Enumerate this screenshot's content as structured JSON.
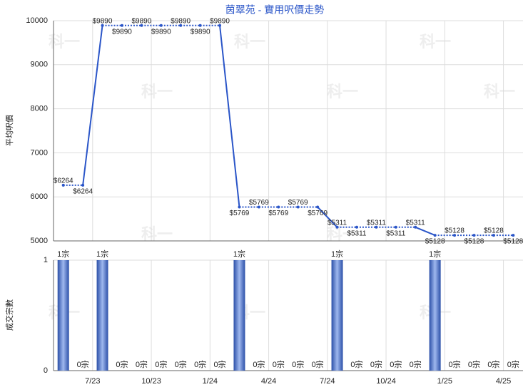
{
  "chart_data": [
    {
      "type": "line",
      "title": "茵翠苑 - 實用呎價走勢",
      "ylabel": "平均呎價",
      "color": "#2a55c8",
      "values": [
        6264,
        6264,
        9890,
        9890,
        9890,
        9890,
        9890,
        9890,
        9890,
        5769,
        5769,
        5769,
        5769,
        5769,
        5311,
        5311,
        5311,
        5311,
        5311,
        5128,
        5128,
        5128,
        5128,
        5128
      ],
      "value_labels": [
        "$6264",
        "$6264",
        "$9890",
        "$9890",
        "$9890",
        "$9890",
        "$9890",
        "$9890",
        "$9890",
        "$5769",
        "$5769",
        "$5769",
        "$5769",
        "$5769",
        "$5311",
        "$5311",
        "$5311",
        "$5311",
        "$5311",
        "$5128",
        "$5128",
        "$5128",
        "$5128",
        "$5128"
      ],
      "ylim": [
        5000,
        10000
      ],
      "yticks": [
        5000,
        6000,
        7000,
        8000,
        9000,
        10000
      ],
      "grid": true,
      "watermark": "科一"
    },
    {
      "type": "bar",
      "ylabel": "成交宗數",
      "color": "#3a66c8",
      "categories": [
        null,
        null,
        "7/23",
        null,
        null,
        "10/23",
        null,
        null,
        "1/24",
        null,
        null,
        "4/24",
        null,
        null,
        "7/24",
        null,
        null,
        "10/24",
        null,
        null,
        "1/25",
        null,
        null,
        "4/25"
      ],
      "values": [
        1,
        0,
        1,
        0,
        0,
        0,
        0,
        0,
        0,
        1,
        0,
        0,
        0,
        0,
        1,
        0,
        0,
        0,
        0,
        1,
        0,
        0,
        0,
        0
      ],
      "value_labels": [
        "1宗",
        "0宗",
        "1宗",
        "0宗",
        "0宗",
        "0宗",
        "0宗",
        "0宗",
        "0宗",
        "1宗",
        "0宗",
        "0宗",
        "0宗",
        "0宗",
        "1宗",
        "0宗",
        "0宗",
        "0宗",
        "0宗",
        "1宗",
        "0宗",
        "0宗",
        "0宗",
        "0宗"
      ],
      "ylim": [
        0,
        1
      ],
      "yticks": [
        0,
        1
      ],
      "grid": true
    }
  ]
}
